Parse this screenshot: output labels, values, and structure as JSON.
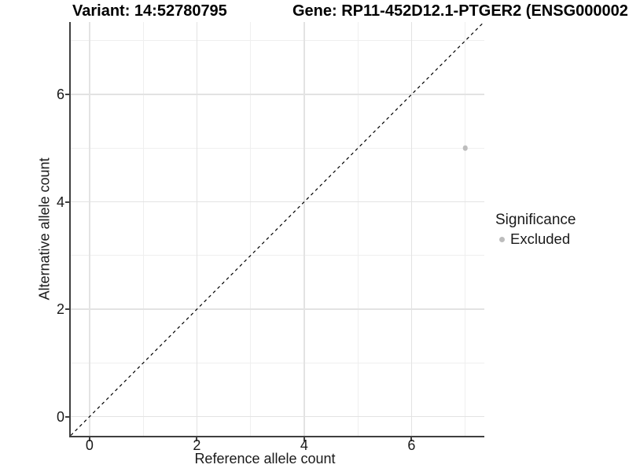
{
  "chart_data": {
    "type": "scatter",
    "titles": {
      "left": "Variant: 14:52780795",
      "right": "Gene: RP11-452D12.1-PTGER2 (ENSG000002"
    },
    "xlabel": "Reference allele count",
    "ylabel": "Alternative allele count",
    "xlim": [
      -0.35,
      7.35
    ],
    "ylim": [
      -0.35,
      7.35
    ],
    "x_ticks": [
      0,
      2,
      4,
      6
    ],
    "y_ticks": [
      0,
      2,
      4,
      6
    ],
    "x_minor": [
      1,
      3,
      5,
      7
    ],
    "y_minor": [
      1,
      3,
      5,
      7
    ],
    "grid": "on",
    "identity_line": {
      "slope": 1,
      "intercept": 0,
      "style": "dashed",
      "color": "#000000"
    },
    "series": [
      {
        "name": "Excluded",
        "color": "#bdbdbd",
        "points": [
          {
            "x": 7,
            "y": 5
          }
        ]
      }
    ],
    "legend": {
      "title": "Significance",
      "position": "right",
      "entries": [
        {
          "label": "Excluded",
          "color": "#bdbdbd"
        }
      ]
    }
  },
  "colors": {
    "axis_line": "#3f3f3f",
    "grid_major": "#e3e3e3",
    "grid_minor": "#efefef",
    "point": "#bdbdbd",
    "background": "#ffffff"
  }
}
